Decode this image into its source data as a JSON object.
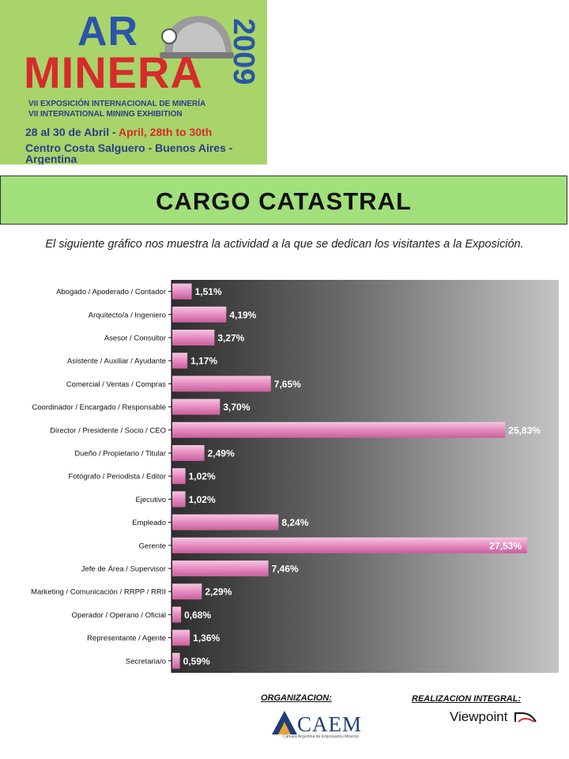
{
  "logo": {
    "ar": "AR",
    "minera": "MINERA",
    "year": "2009",
    "line1": "VII EXPOSICIÓN INTERNACIONAL DE MINERÍA",
    "line2": "VII INTERNATIONAL MINING EXHIBITION",
    "dates_es": "28 al 30 de Abril - ",
    "dates_en": "April, 28th to 30th",
    "venue": "Centro Costa Salguero - Buenos Aires - Argentina"
  },
  "header": {
    "title": "CARGO CATASTRAL"
  },
  "description": "El siguiente gráfico nos muestra la actividad a la que se dedican los visitantes a la Exposición.",
  "chart_data": {
    "type": "bar",
    "orientation": "horizontal",
    "categories": [
      "Abogado / Apoderado / Contador",
      "Arquitecto/a / Ingeniero",
      "Asesor / Consultor",
      "Asistente / Auxiliar / Ayudante",
      "Comercial / Ventas / Compras",
      "Coordinador / Encargado / Responsable",
      "Director / Presidente / Socio / CEO",
      "Dueño / Propietario / Titular",
      "Fotógrafo / Periodista / Editor",
      "Ejecutivo",
      "Empleado",
      "Gerente",
      "Jefe de Área / Supervisor",
      "Marketing / Comunicación / RRPP / RRII",
      "Operador / Operario / Oficial",
      "Representante / Agente",
      "Secretaria/o"
    ],
    "values": [
      1.51,
      4.19,
      3.27,
      1.17,
      7.65,
      3.7,
      25.83,
      2.49,
      1.02,
      1.02,
      8.24,
      27.53,
      7.46,
      2.29,
      0.68,
      1.36,
      0.59
    ],
    "data_labels": [
      "1,51%",
      "4,19%",
      "3,27%",
      "1,17%",
      "7,65%",
      "3,70%",
      "25,83%",
      "2,49%",
      "1,02%",
      "1,02%",
      "8,24%",
      "27,53%",
      "7,46%",
      "2,29%",
      "0,68%",
      "1,36%",
      "0,59%"
    ],
    "value_format": "percent",
    "xlim": [
      0,
      27.53
    ],
    "grid": false,
    "legend": "none",
    "bar_color": "#e58cc0",
    "background": "gray gradient (dark left to light right)"
  },
  "footer": {
    "organizacion_label": "ORGANIZACION:",
    "realizacion_label": "REALIZACION INTEGRAL:",
    "caem_word": "CAEM",
    "caem_sub": "Cámara Argentina de Empresarios Mineros",
    "viewpoint": "Viewpoint"
  },
  "colors": {
    "logo_bg": "#a9d46a",
    "title_band": "#a2e07c",
    "bar": "#e58cc0",
    "navy": "#2a3d8a",
    "red": "#d62b2b"
  }
}
